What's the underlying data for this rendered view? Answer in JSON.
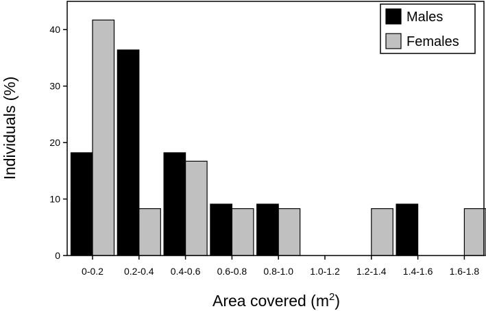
{
  "chart_data": {
    "type": "bar",
    "xlabel": "Area covered (m",
    "xlabel_superscript": "2",
    "xlabel_close": ")",
    "ylabel": "Individuals (%)",
    "ylim": [
      0,
      45
    ],
    "yticks": [
      0,
      10,
      20,
      30,
      40
    ],
    "categories": [
      "0-0.2",
      "0.2-0.4",
      "0.4-0.6",
      "0.6-0.8",
      "0.8-1.0",
      "1.0-1.2",
      "1.2-1.4",
      "1.4-1.6",
      "1.6-1.8"
    ],
    "series": [
      {
        "name": "Males",
        "color": "#000000",
        "values": [
          18.2,
          36.4,
          18.2,
          9.1,
          9.1,
          0,
          0,
          9.1,
          0
        ]
      },
      {
        "name": "Females",
        "color": "#c0c0c0",
        "values": [
          41.7,
          8.3,
          16.7,
          8.3,
          8.3,
          0,
          8.3,
          0,
          8.3
        ]
      }
    ],
    "legend_position": "top-right",
    "grid": false
  }
}
